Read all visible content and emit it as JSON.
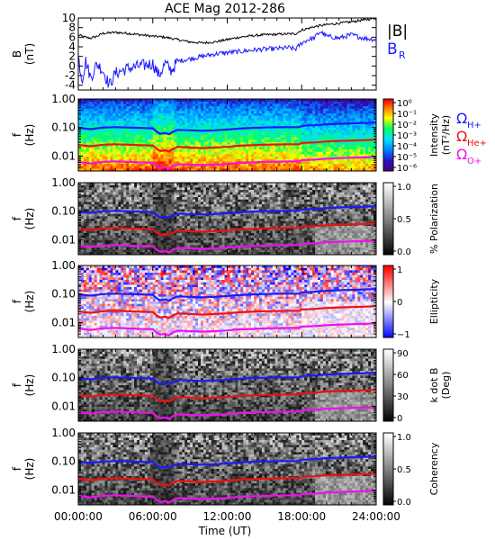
{
  "chart_data": {
    "title": "ACE Mag 2012-286",
    "xlabel": "Time (UT)",
    "x_ticks": [
      "00:00:00",
      "06:00:00",
      "12:00:00",
      "18:00:00",
      "24:00:00"
    ],
    "x_range_hours": [
      0,
      24
    ],
    "panels": [
      {
        "type": "line",
        "ylabel_main": "B",
        "ylabel_unit": "(nT)",
        "ylim": [
          -5,
          10
        ],
        "y_ticks": [
          "10",
          "8",
          "6",
          "4",
          "2",
          "0",
          "-2",
          "-4"
        ],
        "series": [
          {
            "name": "|B|",
            "color": "#000000",
            "x": [
              0,
              0.5,
              1,
              1.5,
              2,
              3,
              4,
              5,
              6,
              7,
              8,
              9,
              10,
              11,
              12,
              13,
              14,
              15,
              16,
              17,
              17.5,
              18,
              18.5,
              19,
              20,
              21,
              22,
              23,
              24
            ],
            "y": [
              6.5,
              6.0,
              5.8,
              6.2,
              6.8,
              7.0,
              6.8,
              6.5,
              6.2,
              6.0,
              5.5,
              5.0,
              4.8,
              5.0,
              5.5,
              6.0,
              6.3,
              6.5,
              6.6,
              6.7,
              6.7,
              7.5,
              7.8,
              8.2,
              8.6,
              8.9,
              9.2,
              9.6,
              10.0
            ]
          },
          {
            "name": "B",
            "subscript": "R",
            "color": "#1a1aff",
            "x": [
              0,
              0.3,
              0.6,
              1,
              1.5,
              2,
              2.5,
              3,
              4,
              5,
              6,
              6.5,
              7,
              7.5,
              8,
              9,
              10,
              11,
              12,
              13,
              14,
              15,
              16,
              17,
              17.5,
              18,
              18.5,
              19,
              19.5,
              20,
              21,
              22,
              23,
              24
            ],
            "y": [
              2.0,
              -3.0,
              1.0,
              -2.5,
              0.5,
              -1.0,
              -4.0,
              -1.5,
              -0.5,
              0.0,
              0.5,
              -2.0,
              0.5,
              -1.0,
              1.0,
              1.5,
              2.0,
              2.5,
              2.8,
              3.0,
              3.3,
              3.5,
              3.6,
              3.8,
              3.5,
              4.8,
              5.5,
              5.8,
              7.2,
              6.2,
              5.8,
              6.5,
              5.8,
              5.5
            ]
          }
        ]
      },
      {
        "type": "heatmap",
        "ylabel_main": "f",
        "ylabel_unit": "(Hz)",
        "ylim": [
          0.003,
          1.0
        ],
        "yscale": "log",
        "y_ticks": [
          "1.00",
          "0.10",
          "0.01"
        ],
        "colorbar": "rainbow",
        "colorbar_ticks": [
          "10⁰",
          "10⁻¹",
          "10⁻²",
          "10⁻³",
          "10⁻⁴",
          "10⁻⁵",
          "10⁻⁶"
        ],
        "colorbar_label": "Intensity",
        "colorbar_unit": "(nT²/Hz)"
      },
      {
        "type": "heatmap",
        "ylabel_main": "f",
        "ylabel_unit": "(Hz)",
        "ylim": [
          0.003,
          1.0
        ],
        "yscale": "log",
        "y_ticks": [
          "1.00",
          "0.10",
          "0.01"
        ],
        "colorbar": "gray",
        "colorbar_ticks": [
          "1.0",
          "0.5",
          "0.0"
        ],
        "colorbar_label": "% Polarization"
      },
      {
        "type": "heatmap",
        "ylabel_main": "f",
        "ylabel_unit": "(Hz)",
        "ylim": [
          0.003,
          1.0
        ],
        "yscale": "log",
        "y_ticks": [
          "1.00",
          "0.10",
          "0.01"
        ],
        "colorbar": "bwr",
        "colorbar_ticks": [
          "1",
          "0",
          "−1"
        ],
        "colorbar_label": "Ellipticity"
      },
      {
        "type": "heatmap",
        "ylabel_main": "f",
        "ylabel_unit": "(Hz)",
        "ylim": [
          0.003,
          1.0
        ],
        "yscale": "log",
        "y_ticks": [
          "1.00",
          "0.10",
          "0.01"
        ],
        "colorbar": "gray",
        "colorbar_ticks": [
          "90",
          "60",
          "30",
          "0"
        ],
        "colorbar_label": "k dot B",
        "colorbar_unit": "(Deg)"
      },
      {
        "type": "heatmap",
        "ylabel_main": "f",
        "ylabel_unit": "(Hz)",
        "ylim": [
          0.003,
          1.0
        ],
        "yscale": "log",
        "y_ticks": [
          "1.00",
          "0.10",
          "0.01"
        ],
        "colorbar": "gray",
        "colorbar_ticks": [
          "1.0",
          "0.5",
          "0.0"
        ],
        "colorbar_label": "Coherency"
      }
    ],
    "gyrofrequency_lines": {
      "x": [
        0,
        0.5,
        1,
        1.5,
        2,
        3,
        4,
        5,
        6,
        6.3,
        6.6,
        7,
        7.3,
        7.6,
        8,
        9,
        10,
        11,
        12,
        13,
        14,
        15,
        16,
        17,
        17.8,
        18,
        19,
        20,
        21,
        22,
        23,
        24
      ],
      "series": [
        {
          "name": "Ω",
          "subscript": "H+",
          "color": "#1a1aff",
          "y": [
            0.1,
            0.092,
            0.088,
            0.094,
            0.1,
            0.103,
            0.1,
            0.097,
            0.094,
            0.072,
            0.06,
            0.065,
            0.058,
            0.07,
            0.083,
            0.08,
            0.077,
            0.08,
            0.085,
            0.092,
            0.097,
            0.1,
            0.102,
            0.103,
            0.103,
            0.115,
            0.12,
            0.13,
            0.136,
            0.14,
            0.145,
            0.15
          ]
        },
        {
          "name": "Ω",
          "subscript": "He+",
          "color": "#ee1111",
          "y": [
            0.025,
            0.023,
            0.022,
            0.0235,
            0.025,
            0.026,
            0.025,
            0.024,
            0.0235,
            0.018,
            0.015,
            0.016,
            0.0145,
            0.0175,
            0.021,
            0.02,
            0.019,
            0.02,
            0.021,
            0.023,
            0.024,
            0.025,
            0.0255,
            0.026,
            0.026,
            0.029,
            0.03,
            0.0325,
            0.034,
            0.035,
            0.036,
            0.0375
          ]
        },
        {
          "name": "Ω",
          "subscript": "O+",
          "color": "#ee11ee",
          "y": [
            0.0063,
            0.0058,
            0.0055,
            0.0059,
            0.0063,
            0.0065,
            0.0063,
            0.006,
            0.0059,
            0.0045,
            0.0038,
            0.004,
            0.0036,
            0.0044,
            0.0052,
            0.005,
            0.0048,
            0.005,
            0.0053,
            0.0058,
            0.006,
            0.0063,
            0.0064,
            0.0065,
            0.0065,
            0.0072,
            0.0075,
            0.0081,
            0.0085,
            0.0088,
            0.009,
            0.0094
          ]
        }
      ]
    }
  }
}
